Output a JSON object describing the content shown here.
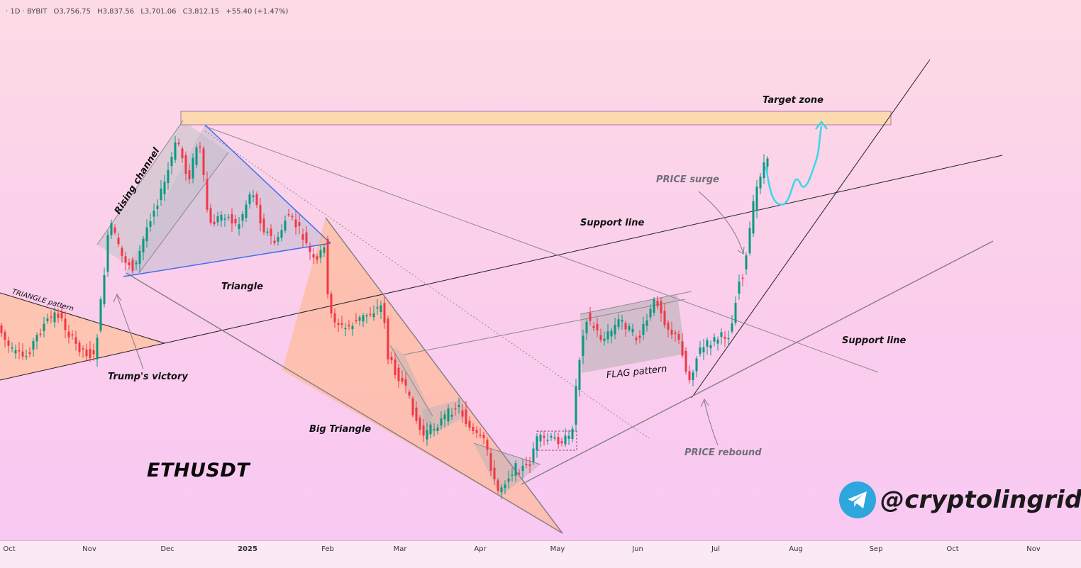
{
  "header": {
    "interval": "· 1D · BYBIT",
    "open": "O3,756.75",
    "high": "H3,837.56",
    "low": "L3,701.06",
    "close": "C3,812.15",
    "change": "+55.40 (+1.47%)"
  },
  "ticker": "ETHUSDT",
  "brand": {
    "handle": "@cryptolingrid",
    "icon": "telegram-icon"
  },
  "annotations": {
    "target_zone": "Target zone",
    "rising_channel": "Rising channel",
    "triangle_pattern": "TRIANGLE pattern",
    "triangle": "Triangle",
    "trumps_victory": "Trump's victory",
    "big_triangle": "Big Triangle",
    "support_line_1": "Support line",
    "support_line_2": "Support line",
    "price_surge": "PRICE surge",
    "flag_pattern": "FLAG pattern",
    "price_rebound": "PRICE rebound"
  },
  "colors": {
    "bull": "#089981",
    "bear": "#f23645",
    "target_zone_fill": "#fdd9a8",
    "target_zone_stroke": "#b070c0",
    "projection": "#3ad7e8",
    "pattern_fill": "#c9c9c9",
    "triangle_fill": "#ffb988",
    "triangle_edge": "#4a7cf0"
  },
  "chart_data": {
    "type": "candlestick",
    "symbol": "ETHUSDT",
    "exchange": "BYBIT",
    "interval": "1D",
    "x_tick_labels": [
      "Oct",
      "Nov",
      "Dec",
      "2025",
      "Feb",
      "Mar",
      "Apr",
      "May",
      "Jun",
      "Jul",
      "Aug",
      "Sep",
      "Oct",
      "Nov"
    ],
    "last_ohlc": {
      "open": 3756.75,
      "high": 3837.56,
      "low": 3701.06,
      "close": 3812.15,
      "change": 55.4,
      "change_pct": 1.47
    }
  }
}
